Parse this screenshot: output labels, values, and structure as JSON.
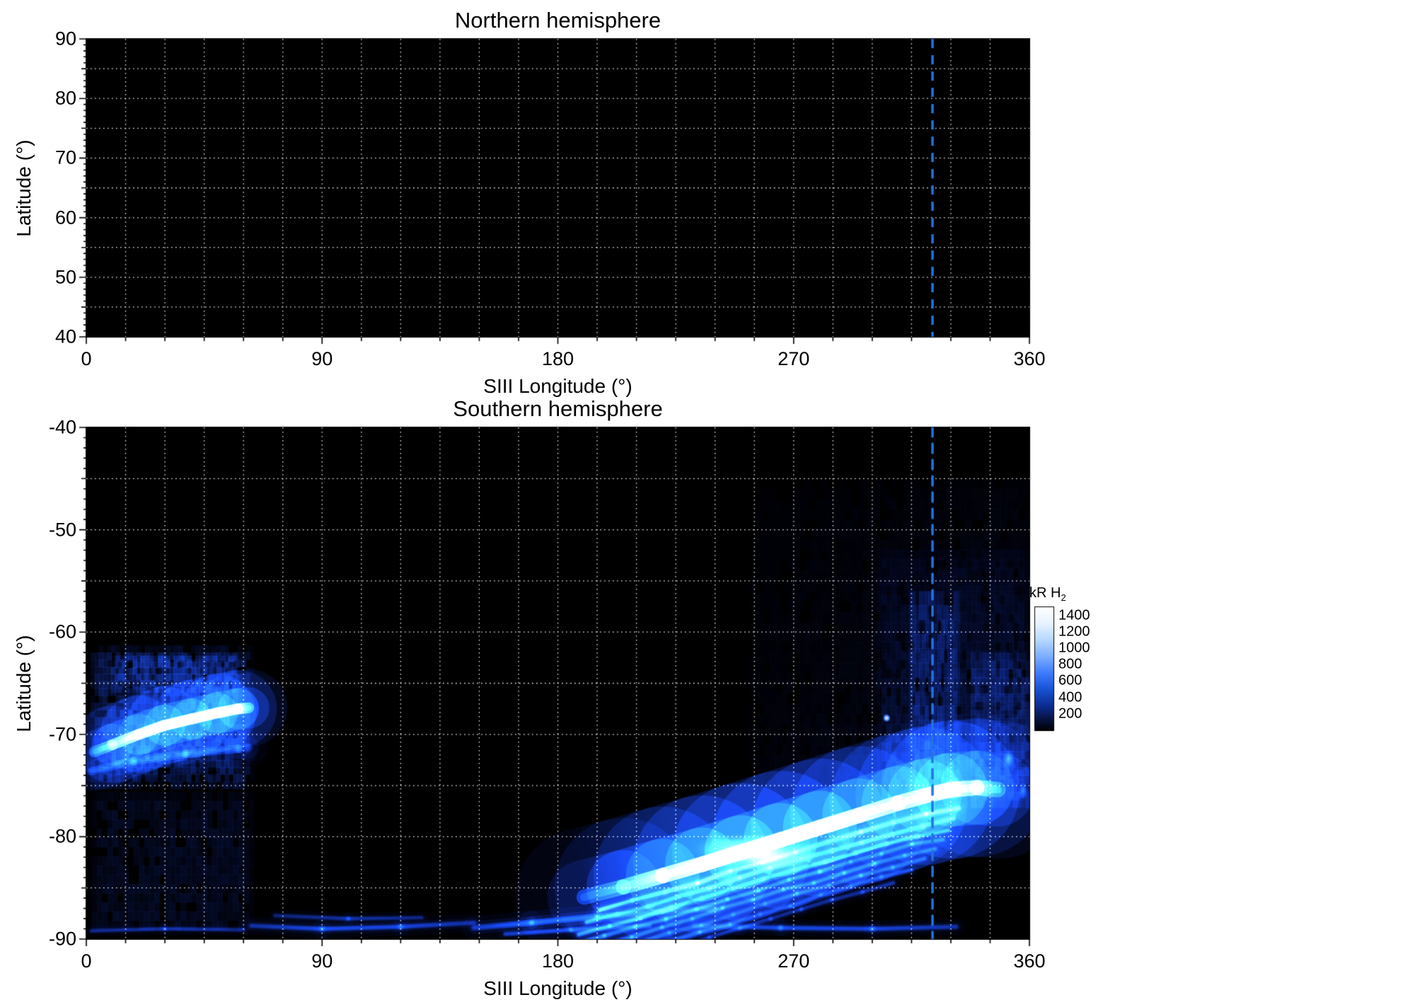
{
  "panels": [
    {
      "id": "north",
      "title": "Northern hemisphere",
      "xlabel": "SIII Longitude (°)",
      "ylabel": "Latitude (°)",
      "xlim": [
        0,
        360
      ],
      "ylim": [
        40,
        90
      ],
      "xticks": [
        0,
        90,
        180,
        270,
        360
      ],
      "yticks": [
        90,
        80,
        70,
        60,
        50,
        40
      ]
    },
    {
      "id": "south",
      "title": "Southern hemisphere",
      "xlabel": "SIII Longitude (°)",
      "ylabel": "Latitude (°)",
      "xlim": [
        0,
        360
      ],
      "ylim": [
        -90,
        -40
      ],
      "xticks": [
        0,
        90,
        180,
        270,
        360
      ],
      "yticks": [
        -40,
        -50,
        -60,
        -70,
        -80,
        -90
      ]
    }
  ],
  "colorbar": {
    "title": "kR H",
    "title_sub": "2",
    "ticks": [
      1400,
      1200,
      1000,
      800,
      600,
      400,
      200
    ],
    "range": [
      0,
      1500
    ]
  },
  "chart_data": {
    "type": "heatmap",
    "xlabel": "SIII Longitude (°)",
    "ylabel": "Latitude (°)",
    "colorbar_label": "kR H2",
    "background": "#000000",
    "grid": {
      "x_spacing_deg": 15,
      "y_spacing_deg": 5,
      "color": "#ffffff",
      "style": "dotted"
    },
    "reference_line_lon": 323,
    "reference_line_color": "#2374e0",
    "colormap": [
      [
        0,
        "#000004"
      ],
      [
        150,
        "#081647"
      ],
      [
        300,
        "#0c2d91"
      ],
      [
        500,
        "#1853d4"
      ],
      [
        700,
        "#3f7bff"
      ],
      [
        900,
        "#7caeff"
      ],
      [
        1100,
        "#b6d8ff"
      ],
      [
        1300,
        "#e7f3ff"
      ],
      [
        1500,
        "#ffffff"
      ]
    ],
    "north": {
      "xlim": [
        0,
        360
      ],
      "ylim": [
        40,
        90
      ],
      "features": []
    },
    "south": {
      "xlim": [
        0,
        360
      ],
      "ylim": [
        -90,
        -40
      ],
      "features": [
        {
          "kind": "diffuse",
          "name": "dawn-diffuse",
          "lon": [
            0,
            63
          ],
          "lat": [
            -76,
            -61.5
          ],
          "intensity": 150,
          "cell": [
            1.6,
            0.7
          ],
          "seed": 11
        },
        {
          "kind": "diffuse",
          "name": "dawn-diffuse-low",
          "lon": [
            0,
            63
          ],
          "lat": [
            -90,
            -76
          ],
          "intensity": 62,
          "cell": [
            2.0,
            0.9
          ],
          "seed": 12
        },
        {
          "kind": "arc",
          "name": "dawn-secondary-arc",
          "points": [
            [
              2,
              -73.6
            ],
            [
              18,
              -72.6
            ],
            [
              38,
              -71.9
            ],
            [
              58,
              -71.4
            ],
            [
              62,
              -71.3
            ]
          ],
          "intensity": [
            260,
            330,
            300,
            260,
            200
          ],
          "width": 0.8,
          "glow": 1.6
        },
        {
          "kind": "arc",
          "name": "dawn-main-streak",
          "points": [
            [
              3,
              -71.7
            ],
            [
              10,
              -71.0
            ],
            [
              20,
              -70.0
            ],
            [
              30,
              -69.1
            ],
            [
              40,
              -68.5
            ],
            [
              50,
              -67.9
            ],
            [
              58,
              -67.5
            ],
            [
              62,
              -67.4
            ]
          ],
          "intensity": [
            520,
            950,
            1430,
            1560,
            1560,
            1520,
            1380,
            820
          ],
          "width": 1.05,
          "glow": 2.4
        },
        {
          "kind": "diffuse",
          "name": "dawn-upper-cloud",
          "lon": [
            8,
            58
          ],
          "lat": [
            -66.5,
            -62.5
          ],
          "intensity": 165,
          "cell": [
            1.4,
            0.6
          ],
          "seed": 13
        },
        {
          "kind": "arc",
          "name": "polar-faint-arc-1",
          "points": [
            [
              63,
              -88.7
            ],
            [
              90,
              -89.0
            ],
            [
              120,
              -88.8
            ],
            [
              148,
              -88.4
            ]
          ],
          "intensity": [
            210,
            310,
            290,
            200
          ],
          "width": 0.5,
          "glow": 1.2
        },
        {
          "kind": "arc",
          "name": "polar-faint-arc-2",
          "points": [
            [
              72,
              -87.7
            ],
            [
              100,
              -88.0
            ],
            [
              128,
              -87.9
            ]
          ],
          "intensity": [
            150,
            215,
            155
          ],
          "width": 0.4,
          "glow": 1.0
        },
        {
          "kind": "arc",
          "name": "bottom-edge-arc-left",
          "points": [
            [
              2,
              -89.2
            ],
            [
              30,
              -89.0
            ],
            [
              60,
              -89.1
            ]
          ],
          "intensity": [
            170,
            200,
            170
          ],
          "width": 0.4,
          "glow": 1.0
        },
        {
          "kind": "arc",
          "name": "dusk-rising-arc",
          "points": [
            [
              148,
              -88.9
            ],
            [
              170,
              -88.4
            ],
            [
              195,
              -87.8
            ],
            [
              220,
              -87.3
            ],
            [
              240,
              -87.0
            ]
          ],
          "intensity": [
            240,
            430,
            410,
            330,
            270
          ],
          "width": 0.6,
          "glow": 1.3
        },
        {
          "kind": "arc",
          "name": "bottom-edge-arc-mid",
          "points": [
            [
              160,
              -89.5
            ],
            [
              185,
              -89.1
            ],
            [
              215,
              -88.7
            ]
          ],
          "intensity": [
            240,
            300,
            260
          ],
          "width": 0.45,
          "glow": 1.0
        },
        {
          "kind": "arc",
          "name": "bottom-edge-arc-right",
          "points": [
            [
              232,
              -88.7
            ],
            [
              265,
              -88.9
            ],
            [
              300,
              -89.0
            ],
            [
              332,
              -88.8
            ]
          ],
          "intensity": [
            220,
            300,
            290,
            220
          ],
          "width": 0.5,
          "glow": 1.1
        },
        {
          "kind": "diffuse",
          "name": "dusk-diffuse-broad",
          "lon": [
            250,
            360
          ],
          "lat": [
            -76,
            -45
          ],
          "intensity": 55,
          "cell": [
            2.2,
            1.0
          ],
          "seed": 21,
          "ramp": "se"
        },
        {
          "kind": "diffuse",
          "name": "dusk-diffuse-lower",
          "lon": [
            300,
            360
          ],
          "lat": [
            -78,
            -52
          ],
          "intensity": 95,
          "cell": [
            1.8,
            0.9
          ],
          "seed": 22,
          "ramp": "down"
        },
        {
          "kind": "diffuse",
          "name": "refline-diffuse",
          "lon": [
            313,
            333
          ],
          "lat": [
            -77,
            -56
          ],
          "intensity": 128,
          "cell": [
            1.2,
            1.4
          ],
          "seed": 23
        },
        {
          "kind": "diffuse",
          "name": "right-edge-diffuse",
          "lon": [
            336,
            360
          ],
          "lat": [
            -78,
            -62
          ],
          "intensity": 118,
          "cell": [
            1.6,
            0.8
          ],
          "seed": 24
        },
        {
          "kind": "striations",
          "name": "main-oval-striations",
          "base": [
            [
              185,
              -86.2
            ],
            [
              200,
              -85.1
            ],
            [
              215,
              -84.0
            ],
            [
              230,
              -82.9
            ],
            [
              245,
              -81.7
            ],
            [
              260,
              -80.5
            ],
            [
              275,
              -79.4
            ],
            [
              290,
              -78.2
            ],
            [
              305,
              -77.1
            ],
            [
              320,
              -76.1
            ],
            [
              335,
              -75.4
            ]
          ],
          "offsets": [
            -1.8,
            -2.7,
            -3.6,
            -4.4,
            -5.2,
            -6.0,
            -6.8,
            -7.6
          ],
          "intensity": [
            780,
            610,
            510,
            430,
            370,
            310,
            260,
            215
          ],
          "trims": [
            [
              196,
              333
            ],
            [
              191,
              331
            ],
            [
              188,
              329
            ],
            [
              186,
              327
            ],
            [
              185,
              324
            ],
            [
              186,
              320
            ],
            [
              188,
              315
            ],
            [
              191,
              308
            ]
          ],
          "width": 0.42,
          "glow": 1.1,
          "seed": 31
        },
        {
          "kind": "blob",
          "name": "main-oval-bright-core",
          "lon": 256,
          "lat": -81.6,
          "rx": 26,
          "ry": 2.0,
          "angle": -4,
          "intensity": 1450
        },
        {
          "kind": "arc",
          "name": "main-oval-arc",
          "points": [
            [
              190,
              -85.9
            ],
            [
              205,
              -84.9
            ],
            [
              220,
              -83.8
            ],
            [
              235,
              -82.7
            ],
            [
              250,
              -81.5
            ],
            [
              265,
              -80.3
            ],
            [
              280,
              -79.1
            ],
            [
              295,
              -77.9
            ],
            [
              310,
              -76.7
            ],
            [
              320,
              -76.0
            ],
            [
              330,
              -75.4
            ],
            [
              340,
              -75.2
            ],
            [
              348,
              -75.4
            ]
          ],
          "intensity": [
            380,
            760,
            1260,
            1550,
            1620,
            1620,
            1560,
            1430,
            1260,
            1360,
            1520,
            1050,
            600
          ],
          "width": 1.5,
          "glow": 3.0
        },
        {
          "kind": "blob",
          "name": "isolated-bright-spot",
          "lon": 305.5,
          "lat": -68.4,
          "rx": 1.7,
          "ry": 0.45,
          "angle": 22,
          "intensity": 1550
        },
        {
          "kind": "blob",
          "name": "arc-terminus-knot",
          "lon": 331,
          "lat": -75.3,
          "rx": 4.5,
          "ry": 1.2,
          "angle": 0,
          "intensity": 1450
        },
        {
          "kind": "blob",
          "name": "right-edge-patch-upper",
          "lon": 352,
          "lat": -72.4,
          "rx": 2.6,
          "ry": 1.1,
          "angle": -12,
          "intensity": 650
        },
        {
          "kind": "blob",
          "name": "right-edge-patch-lower",
          "lon": 357.5,
          "lat": -75.6,
          "rx": 2.0,
          "ry": 0.9,
          "angle": 0,
          "intensity": 480
        }
      ]
    }
  }
}
